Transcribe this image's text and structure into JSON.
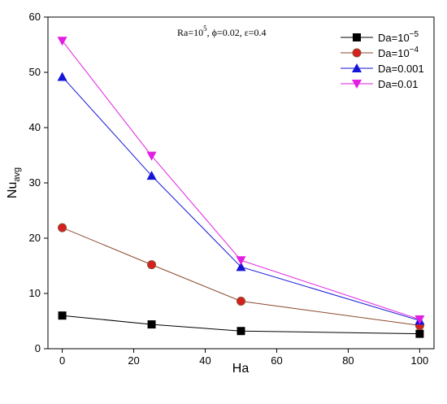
{
  "chart_data": {
    "type": "line",
    "xlabel": "Ha",
    "ylabel": "Nu",
    "ylabel_sub": "avg",
    "xlim": [
      -4,
      104
    ],
    "ylim": [
      0,
      60
    ],
    "xticks": [
      0,
      20,
      40,
      60,
      80,
      100
    ],
    "yticks": [
      0,
      10,
      20,
      30,
      40,
      50,
      60
    ],
    "x": [
      0,
      25,
      50,
      100
    ],
    "annotation": {
      "ra_base": "Ra=10",
      "ra_exp": "5",
      "params": ", ϕ=0.02, ε=0.4"
    },
    "legend_position": "top-right",
    "series": [
      {
        "name": "Da=10",
        "name_sup": "−5",
        "marker": "square",
        "color": "#000000",
        "values": [
          6.0,
          4.4,
          3.2,
          2.7
        ]
      },
      {
        "name": "Da=10",
        "name_sup": "−4",
        "marker": "circle",
        "color": "#d62020",
        "line_color": "#8b4a2b",
        "values": [
          21.9,
          15.2,
          8.6,
          4.2
        ]
      },
      {
        "name": "Da=0.001",
        "name_sup": "",
        "marker": "triangle-up",
        "color": "#1515d8",
        "values": [
          49.2,
          31.3,
          14.8,
          5.1
        ]
      },
      {
        "name": "Da=0.01",
        "name_sup": "",
        "marker": "triangle-down",
        "color": "#e21ee2",
        "values": [
          55.7,
          34.9,
          16.0,
          5.3
        ]
      }
    ]
  }
}
